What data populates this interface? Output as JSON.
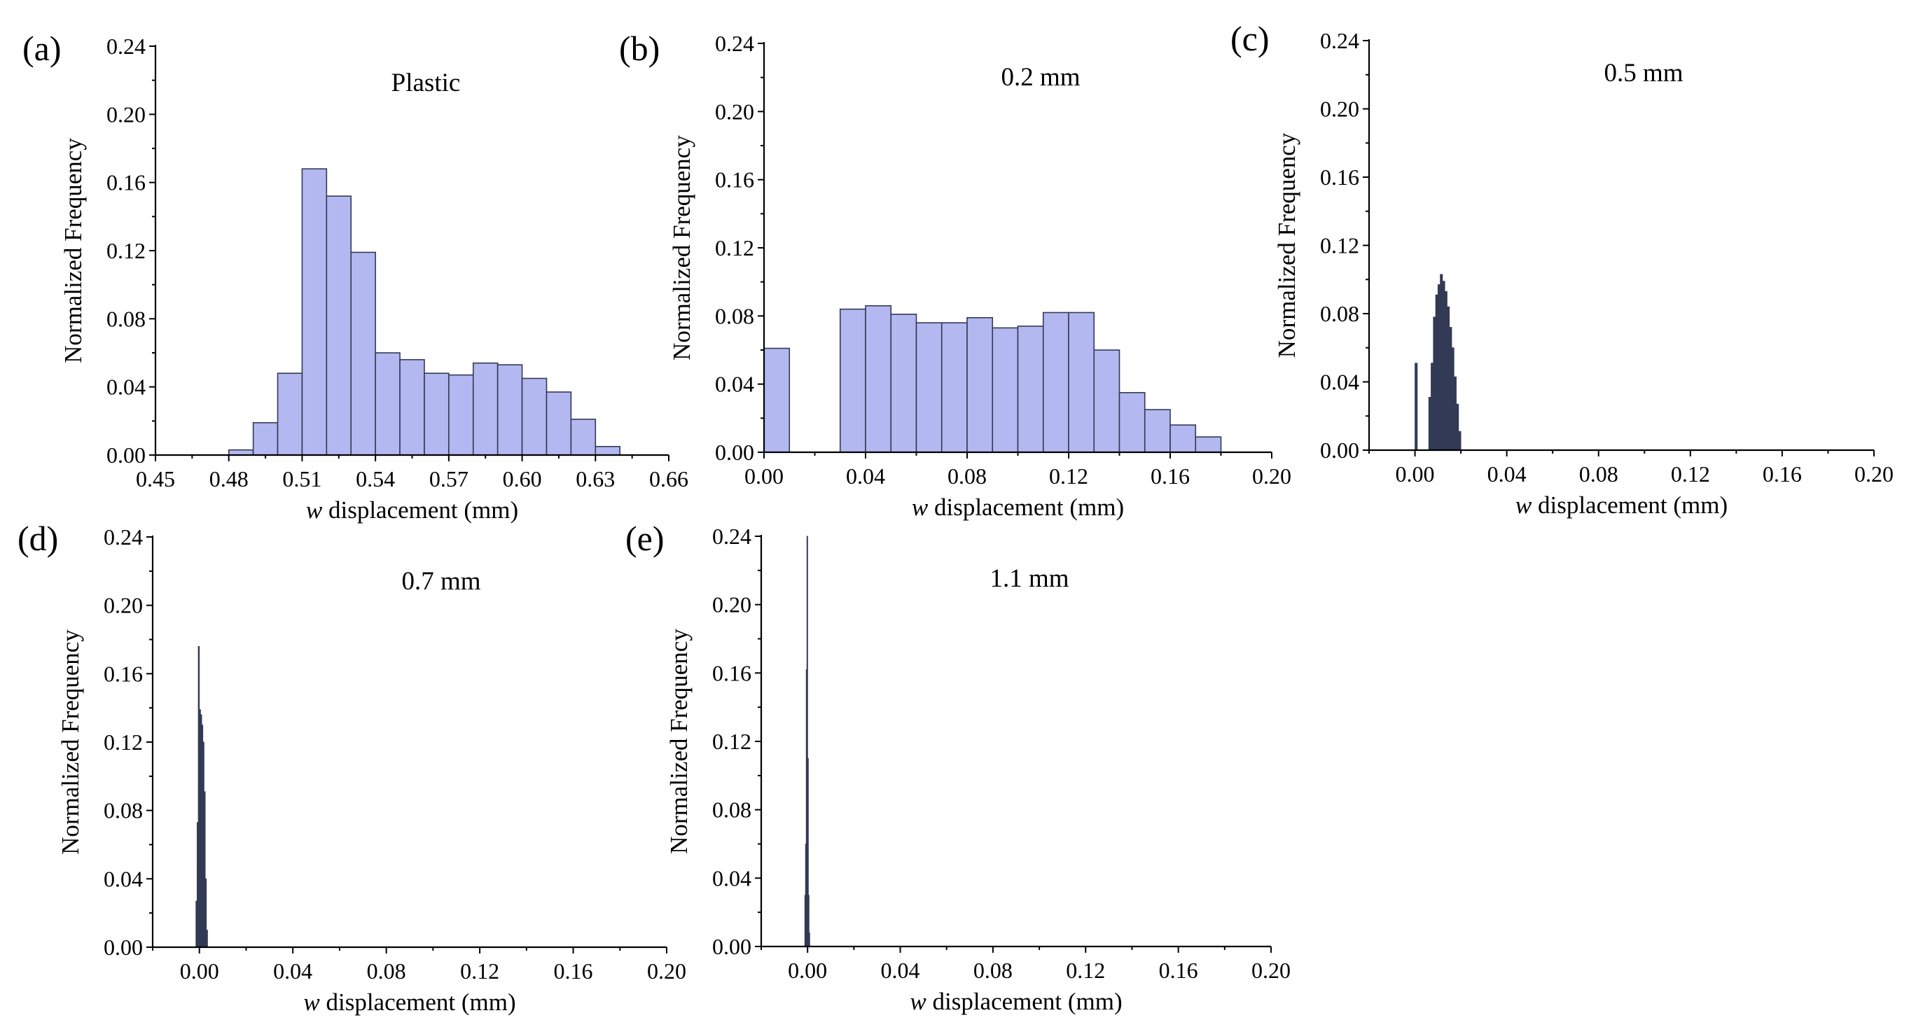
{
  "figure": {
    "colors": {
      "bar_fill": "#b4b8f0",
      "bar_edge": "#333a55",
      "axis": "#000000"
    }
  },
  "chart_data": [
    {
      "id": "a",
      "type": "bar",
      "panel_label": "(a)",
      "title": "Plastic",
      "xlabel_italic": "w",
      "xlabel": " displacement (mm)",
      "ylabel": "Normalized Frequency",
      "xlim": [
        0.45,
        0.66
      ],
      "ylim": [
        0,
        0.24
      ],
      "xticks": [
        "0.45",
        "0.48",
        "0.51",
        "0.54",
        "0.57",
        "0.60",
        "0.63",
        "0.66"
      ],
      "xtick_values": [
        0.45,
        0.48,
        0.51,
        0.54,
        0.57,
        0.6,
        0.63,
        0.66
      ],
      "yticks": [
        "0.00",
        "0.04",
        "0.08",
        "0.12",
        "0.16",
        "0.20",
        "0.24"
      ],
      "yticks_visible": [
        "0.00",
        "0.04",
        "0.08",
        "0.12",
        "0.16",
        "0.20",
        "0.24"
      ],
      "bin_width": 0.01,
      "bins": [
        {
          "x": 0.48,
          "value": 0.003
        },
        {
          "x": 0.49,
          "value": 0.019
        },
        {
          "x": 0.5,
          "value": 0.048
        },
        {
          "x": 0.51,
          "value": 0.168
        },
        {
          "x": 0.52,
          "value": 0.152
        },
        {
          "x": 0.53,
          "value": 0.119
        },
        {
          "x": 0.54,
          "value": 0.06
        },
        {
          "x": 0.55,
          "value": 0.056
        },
        {
          "x": 0.56,
          "value": 0.048
        },
        {
          "x": 0.57,
          "value": 0.047
        },
        {
          "x": 0.58,
          "value": 0.054
        },
        {
          "x": 0.59,
          "value": 0.053
        },
        {
          "x": 0.6,
          "value": 0.045
        },
        {
          "x": 0.61,
          "value": 0.037
        },
        {
          "x": 0.62,
          "value": 0.021
        },
        {
          "x": 0.63,
          "value": 0.005
        }
      ]
    },
    {
      "id": "b",
      "type": "bar",
      "panel_label": "(b)",
      "title": "0.2 mm",
      "xlabel_italic": "w",
      "xlabel": " displacement (mm)",
      "ylabel": "Normalized Frequency",
      "xlim": [
        0.0,
        0.2
      ],
      "ylim": [
        0,
        0.24
      ],
      "xticks": [
        "0.00",
        "0.04",
        "0.08",
        "0.12",
        "0.16",
        "0.20"
      ],
      "xtick_values": [
        0.0,
        0.04,
        0.08,
        0.12,
        0.16,
        0.2
      ],
      "yticks": [
        "0.00",
        "0.04",
        "0.08",
        "0.12",
        "0.16",
        "0.20",
        "0.24"
      ],
      "bin_width": 0.01,
      "bins": [
        {
          "x": 0.0,
          "value": 0.061
        },
        {
          "x": 0.01,
          "value": 0.0
        },
        {
          "x": 0.02,
          "value": 0.0
        },
        {
          "x": 0.03,
          "value": 0.084
        },
        {
          "x": 0.04,
          "value": 0.086
        },
        {
          "x": 0.05,
          "value": 0.081
        },
        {
          "x": 0.06,
          "value": 0.076
        },
        {
          "x": 0.07,
          "value": 0.076
        },
        {
          "x": 0.08,
          "value": 0.079
        },
        {
          "x": 0.09,
          "value": 0.073
        },
        {
          "x": 0.1,
          "value": 0.074
        },
        {
          "x": 0.11,
          "value": 0.082
        },
        {
          "x": 0.12,
          "value": 0.082
        },
        {
          "x": 0.13,
          "value": 0.06
        },
        {
          "x": 0.14,
          "value": 0.035
        },
        {
          "x": 0.15,
          "value": 0.025
        },
        {
          "x": 0.16,
          "value": 0.016
        },
        {
          "x": 0.17,
          "value": 0.009
        }
      ]
    },
    {
      "id": "c",
      "type": "bar",
      "panel_label": "(c)",
      "title": "0.5 mm",
      "xlabel_italic": "w",
      "xlabel": " displacement (mm)",
      "ylabel": "Normalized Frequency",
      "xlim": [
        -0.02,
        0.2
      ],
      "ylim": [
        0,
        0.24
      ],
      "xticks": [
        "0.00",
        "0.04",
        "0.08",
        "0.12",
        "0.16",
        "0.20"
      ],
      "xtick_values": [
        0.0,
        0.04,
        0.08,
        0.12,
        0.16,
        0.2
      ],
      "yticks": [
        "0.00",
        "0.04",
        "0.08",
        "0.12",
        "0.16",
        "0.20",
        "0.24"
      ],
      "bin_width": 0.001,
      "bins": [
        {
          "x": 0.0,
          "value": 0.051
        },
        {
          "x": 0.006,
          "value": 0.031
        },
        {
          "x": 0.007,
          "value": 0.051
        },
        {
          "x": 0.008,
          "value": 0.078
        },
        {
          "x": 0.009,
          "value": 0.091
        },
        {
          "x": 0.01,
          "value": 0.097
        },
        {
          "x": 0.011,
          "value": 0.103
        },
        {
          "x": 0.012,
          "value": 0.099
        },
        {
          "x": 0.013,
          "value": 0.093
        },
        {
          "x": 0.014,
          "value": 0.084
        },
        {
          "x": 0.015,
          "value": 0.072
        },
        {
          "x": 0.016,
          "value": 0.06
        },
        {
          "x": 0.017,
          "value": 0.043
        },
        {
          "x": 0.018,
          "value": 0.027
        },
        {
          "x": 0.019,
          "value": 0.011
        }
      ]
    },
    {
      "id": "d",
      "type": "bar",
      "panel_label": "(d)",
      "title": "0.7 mm",
      "xlabel_italic": "w",
      "xlabel": " displacement (mm)",
      "ylabel": "Normalized Frequency",
      "xlim": [
        -0.02,
        0.2
      ],
      "ylim": [
        0,
        0.24
      ],
      "xticks": [
        "0.00",
        "0.04",
        "0.08",
        "0.12",
        "0.16",
        "0.20"
      ],
      "xtick_values": [
        0.0,
        0.04,
        0.08,
        0.12,
        0.16,
        0.2
      ],
      "yticks": [
        "0.00",
        "0.04",
        "0.08",
        "0.12",
        "0.16",
        "0.20",
        "0.24"
      ],
      "bin_width": 0.0005,
      "bins": [
        {
          "x": -0.0015,
          "value": 0.027
        },
        {
          "x": -0.001,
          "value": 0.073
        },
        {
          "x": -0.0005,
          "value": 0.176
        },
        {
          "x": 0.0,
          "value": 0.139
        },
        {
          "x": 0.0005,
          "value": 0.136
        },
        {
          "x": 0.001,
          "value": 0.13
        },
        {
          "x": 0.0015,
          "value": 0.12
        },
        {
          "x": 0.002,
          "value": 0.091
        },
        {
          "x": 0.0025,
          "value": 0.04
        },
        {
          "x": 0.003,
          "value": 0.01
        }
      ]
    },
    {
      "id": "e",
      "type": "bar",
      "panel_label": "(e)",
      "title": "1.1 mm",
      "xlabel_italic": "w",
      "xlabel": " displacement (mm)",
      "ylabel": "Normalized Frequency",
      "xlim": [
        -0.02,
        0.2
      ],
      "ylim": [
        0,
        0.24
      ],
      "xticks": [
        "0.00",
        "0.04",
        "0.08",
        "0.12",
        "0.16",
        "0.20"
      ],
      "xtick_values": [
        0.0,
        0.04,
        0.08,
        0.12,
        0.16,
        0.2
      ],
      "yticks": [
        "0.00",
        "0.04",
        "0.08",
        "0.12",
        "0.16",
        "0.20",
        "0.24"
      ],
      "bin_width": 0.0003,
      "bins": [
        {
          "x": -0.0012,
          "value": 0.03
        },
        {
          "x": -0.0009,
          "value": 0.06
        },
        {
          "x": -0.0006,
          "value": 0.162
        },
        {
          "x": -0.0003,
          "value": 0.24
        },
        {
          "x": 0.0,
          "value": 0.11
        },
        {
          "x": 0.0003,
          "value": 0.03
        },
        {
          "x": 0.0006,
          "value": 0.008
        }
      ]
    }
  ]
}
